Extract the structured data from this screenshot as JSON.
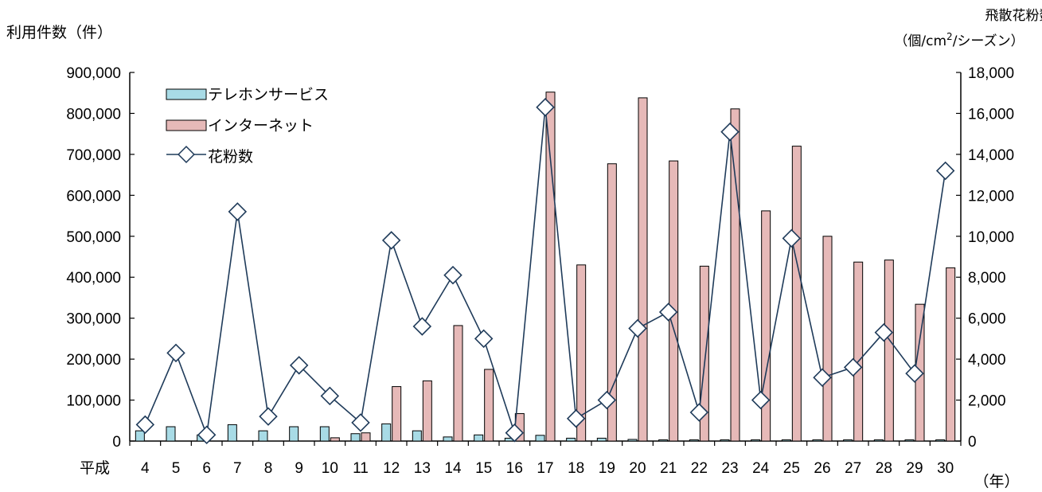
{
  "chart_data": {
    "type": "bar+line",
    "era_label": "平成",
    "xlabel": "（年）",
    "categories": [
      "4",
      "5",
      "6",
      "7",
      "8",
      "9",
      "10",
      "11",
      "12",
      "13",
      "14",
      "15",
      "16",
      "17",
      "18",
      "19",
      "20",
      "21",
      "22",
      "23",
      "24",
      "25",
      "26",
      "27",
      "28",
      "29",
      "30"
    ],
    "series": [
      {
        "name": "テレホンサービス",
        "type": "bar",
        "axis": "left",
        "color": "#a8dbe6",
        "values": [
          25000,
          35000,
          15000,
          40000,
          25000,
          35000,
          35000,
          18000,
          42000,
          25000,
          10000,
          15000,
          7000,
          14000,
          7000,
          7000,
          4000,
          3000,
          3000,
          3000,
          3000,
          3000,
          3000,
          3000,
          3000,
          3000,
          3000
        ]
      },
      {
        "name": "インターネット",
        "type": "bar",
        "axis": "left",
        "color": "#e6b9b8",
        "values": [
          0,
          0,
          0,
          0,
          0,
          0,
          8000,
          20000,
          133000,
          147000,
          282000,
          175000,
          67000,
          852000,
          430000,
          677000,
          838000,
          684000,
          427000,
          811000,
          562000,
          720000,
          500000,
          437000,
          442000,
          334000,
          423000
        ]
      },
      {
        "name": "花粉数",
        "type": "line",
        "axis": "right",
        "color": "#1f3b5a",
        "values": [
          800,
          4300,
          300,
          11200,
          1200,
          3700,
          2200,
          900,
          9800,
          5600,
          8100,
          5000,
          400,
          16300,
          1100,
          2000,
          5500,
          6300,
          1400,
          15100,
          2000,
          9900,
          3100,
          3600,
          5300,
          3300,
          13200
        ]
      }
    ],
    "y_left": {
      "label": "利用件数（件）",
      "min": 0,
      "max": 900000,
      "step": 100000,
      "ticks": [
        "0",
        "100,000",
        "200,000",
        "300,000",
        "400,000",
        "500,000",
        "600,000",
        "700,000",
        "800,000",
        "900,000"
      ]
    },
    "y_right": {
      "label": "飛散花粉数",
      "unit_prefix": "（個/cm",
      "unit_sup": "2",
      "unit_suffix": "/シーズン）",
      "min": 0,
      "max": 18000,
      "step": 2000,
      "ticks": [
        "0",
        "2,000",
        "4,000",
        "6,000",
        "8,000",
        "10,000",
        "12,000",
        "14,000",
        "16,000",
        "18,000"
      ]
    },
    "legend_position": "top-left",
    "grid": false
  }
}
